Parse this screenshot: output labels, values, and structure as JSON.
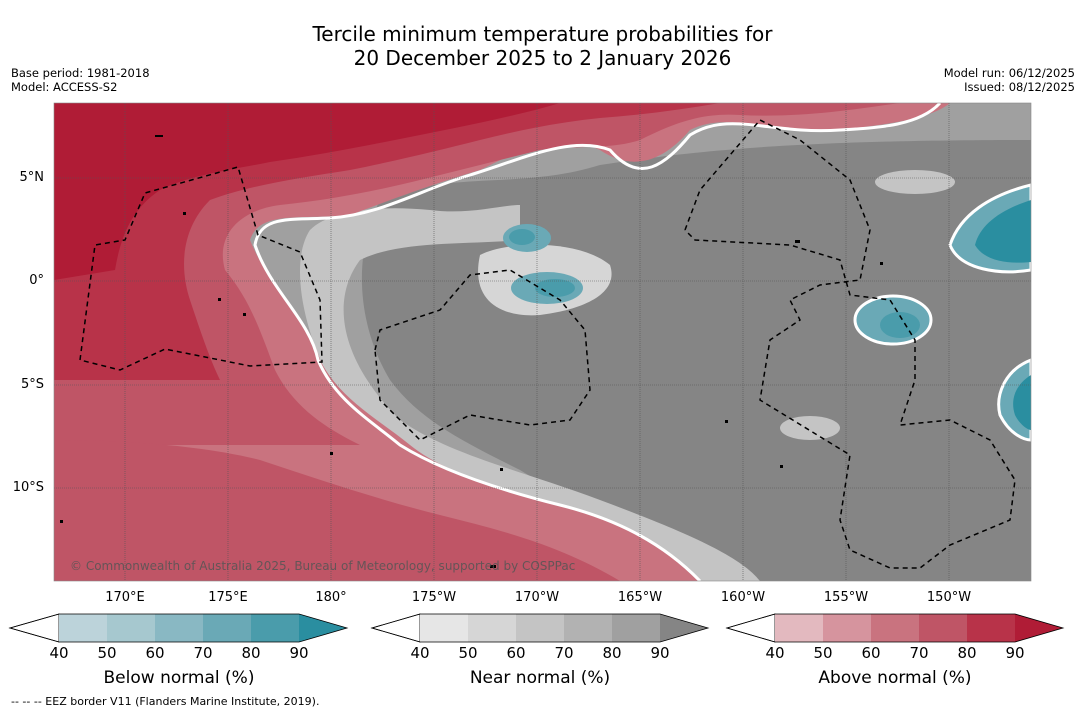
{
  "title": {
    "line1": "Tercile minimum temperature probabilities for",
    "line2": "20 December 2025 to 2 January 2026"
  },
  "meta_left": {
    "base_period": "Base period: 1981-2018",
    "model": "Model: ACCESS-S2"
  },
  "meta_right": {
    "model_run": "Model run: 06/12/2025",
    "issued": "Issued: 08/12/2025"
  },
  "latitude_labels": [
    "5°N",
    "0°",
    "5°S",
    "10°S"
  ],
  "longitude_labels": [
    "170°E",
    "175°E",
    "180°",
    "175°W",
    "170°W",
    "165°W",
    "160°W",
    "155°W",
    "150°W"
  ],
  "copyright": "© Commonwealth of Australia 2025, Bureau of Meteorology, supported by COSPPac",
  "colorbars": [
    {
      "name": "below",
      "label": "Below normal (%)",
      "ticks": [
        "40",
        "50",
        "60",
        "70",
        "80",
        "90"
      ],
      "colors": [
        "#ffffff",
        "#bcd3da",
        "#a6c8cf",
        "#89b8c3",
        "#6aa9b6",
        "#4a9cab",
        "#2a8ea0"
      ]
    },
    {
      "name": "near",
      "label": "Near normal (%)",
      "ticks": [
        "40",
        "50",
        "60",
        "70",
        "80",
        "90"
      ],
      "colors": [
        "#ffffff",
        "#e6e6e6",
        "#d6d6d6",
        "#c4c4c4",
        "#b2b2b2",
        "#a0a0a0",
        "#858585"
      ]
    },
    {
      "name": "above",
      "label": "Above normal (%)",
      "ticks": [
        "40",
        "50",
        "60",
        "70",
        "80",
        "90"
      ],
      "colors": [
        "#ffffff",
        "#e3b9bf",
        "#d6949e",
        "#c9737f",
        "#bf5566",
        "#b83349",
        "#b01c36"
      ]
    }
  ],
  "footnote": "-- -- -- EEZ border V11 (Flanders Marine Institute, 2019)."
}
